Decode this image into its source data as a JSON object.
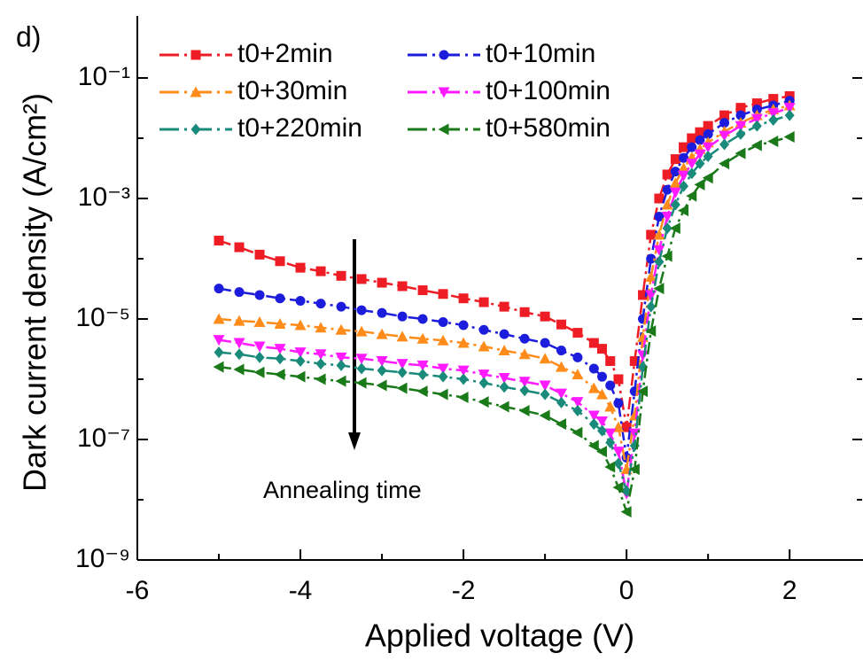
{
  "chart_data": {
    "type": "line",
    "panel_label": "d)",
    "xlabel": "Applied voltage (V)",
    "ylabel": "Dark current density (A/cm²)",
    "annotation": "Annealing time",
    "yscale": "log",
    "legend": "upper left",
    "legend_columns": 2,
    "xlim": [
      -6,
      2.9
    ],
    "ylim": [
      1e-09,
      1
    ],
    "xticks": [
      -6,
      -4,
      -2,
      0,
      2
    ],
    "xticks_minor": [
      -5,
      -3,
      -1,
      1
    ],
    "yticks": [
      {
        "value": 1e-09,
        "label": "10⁻⁹"
      },
      {
        "value": 1e-07,
        "label": "10⁻⁷"
      },
      {
        "value": 1e-05,
        "label": "10⁻⁵"
      },
      {
        "value": 0.001,
        "label": "10⁻³"
      },
      {
        "value": 0.1,
        "label": "10⁻¹"
      }
    ],
    "yticks_minor": [
      1e-08,
      1e-06,
      0.0001,
      0.01
    ],
    "x": [
      -5,
      -4.75,
      -4.5,
      -4.25,
      -4,
      -3.75,
      -3.5,
      -3.25,
      -3,
      -2.75,
      -2.5,
      -2.25,
      -2,
      -1.75,
      -1.5,
      -1.25,
      -1,
      -0.8,
      -0.6,
      -0.4,
      -0.3,
      -0.2,
      -0.1,
      0,
      0.1,
      0.2,
      0.3,
      0.4,
      0.5,
      0.6,
      0.7,
      0.8,
      0.9,
      1,
      1.2,
      1.4,
      1.6,
      1.8,
      2
    ],
    "series": [
      {
        "name": "t0+2min",
        "color": "#ee1c24",
        "marker": "square",
        "values": [
          0.0002,
          0.000155,
          0.000117,
          9.1e-05,
          7.1e-05,
          6.2e-05,
          5.2e-05,
          4.6e-05,
          4e-05,
          3.5e-05,
          3e-05,
          2.6e-05,
          2.2e-05,
          1.9e-05,
          1.6e-05,
          1.3e-05,
          1.1e-05,
          8.1e-06,
          5.9e-06,
          4e-06,
          3.2e-06,
          2e-06,
          1e-06,
          1.6e-07,
          2e-06,
          2.5e-05,
          0.00025,
          0.001,
          0.0025,
          0.0045,
          0.0071,
          0.01,
          0.0126,
          0.016,
          0.024,
          0.032,
          0.038,
          0.045,
          0.05
        ]
      },
      {
        "name": "t0+10min",
        "color": "#1c1cdc",
        "marker": "circle",
        "values": [
          3.2e-05,
          2.8e-05,
          2.5e-05,
          2.2e-05,
          2e-05,
          1.8e-05,
          1.6e-05,
          1.4e-05,
          1.26e-05,
          1.1e-05,
          1e-05,
          8.9e-06,
          7.9e-06,
          6.6e-06,
          5.6e-06,
          4.7e-06,
          4e-06,
          3e-06,
          2.3e-06,
          1.5e-06,
          1.1e-06,
          7.9e-07,
          4e-07,
          5e-08,
          6.3e-07,
          1e-05,
          0.0001,
          0.0005,
          0.0014,
          0.0028,
          0.0047,
          0.0071,
          0.0093,
          0.0117,
          0.018,
          0.024,
          0.03,
          0.035,
          0.042
        ]
      },
      {
        "name": "t0+30min",
        "color": "#ff8c1a",
        "marker": "triangle-up",
        "values": [
          1e-05,
          9.3e-06,
          8.9e-06,
          8.3e-06,
          7.9e-06,
          7.2e-06,
          6.6e-06,
          6.2e-06,
          5.6e-06,
          5.1e-06,
          4.7e-06,
          4.4e-06,
          4e-06,
          3.5e-06,
          3e-06,
          2.6e-06,
          2.2e-06,
          1.6e-06,
          1.2e-06,
          7.1e-07,
          5.6e-07,
          3.5e-07,
          1.6e-07,
          3.2e-08,
          2.5e-07,
          5e-06,
          5e-05,
          0.00025,
          0.00079,
          0.0018,
          0.0032,
          0.0048,
          0.0066,
          0.0085,
          0.013,
          0.018,
          0.024,
          0.03,
          0.035
        ]
      },
      {
        "name": "t0+100min",
        "color": "#ff1aff",
        "marker": "triangle-down",
        "values": [
          4.5e-06,
          4e-06,
          3.5e-06,
          3.2e-06,
          2.8e-06,
          2.6e-06,
          2.3e-06,
          2.2e-06,
          2e-06,
          1.8e-06,
          1.7e-06,
          1.5e-06,
          1.4e-06,
          1.2e-06,
          1.05e-06,
          9.1e-07,
          7.9e-07,
          5.8e-07,
          4.2e-07,
          2.5e-07,
          2e-07,
          1.26e-07,
          6.3e-08,
          1.26e-08,
          1.26e-07,
          2.5e-06,
          2.5e-05,
          0.00014,
          0.0005,
          0.00126,
          0.0024,
          0.0038,
          0.0054,
          0.0071,
          0.011,
          0.016,
          0.021,
          0.026,
          0.032
        ]
      },
      {
        "name": "t0+220min",
        "color": "#1a8a7a",
        "marker": "diamond",
        "values": [
          2.8e-06,
          2.6e-06,
          2.3e-06,
          2.2e-06,
          2e-06,
          1.8e-06,
          1.7e-06,
          1.5e-06,
          1.4e-06,
          1.3e-06,
          1.2e-06,
          1.1e-06,
          1e-06,
          8.7e-07,
          7.4e-07,
          6.5e-07,
          5.6e-07,
          4.1e-07,
          3e-07,
          1.8e-07,
          1.4e-07,
          8.9e-08,
          4e-08,
          1.4e-08,
          7.9e-08,
          1.6e-06,
          1.6e-05,
          8.9e-05,
          0.00032,
          0.00079,
          0.0016,
          0.0026,
          0.0038,
          0.005,
          0.0079,
          0.0117,
          0.016,
          0.02,
          0.024
        ]
      },
      {
        "name": "t0+580min",
        "color": "#1a7a1a",
        "marker": "triangle-left",
        "values": [
          1.6e-06,
          1.45e-06,
          1.3e-06,
          1.2e-06,
          1.1e-06,
          1e-06,
          9.3e-07,
          8.7e-07,
          7.9e-07,
          7.1e-07,
          6.3e-07,
          5.6e-07,
          5e-07,
          4.2e-07,
          3.5e-07,
          3e-07,
          2.5e-07,
          1.8e-07,
          1.3e-07,
          7.9e-08,
          6.3e-08,
          3.5e-08,
          1.6e-08,
          6.3e-09,
          3.2e-08,
          6.3e-07,
          6.3e-06,
          3.2e-05,
          0.00011,
          0.00032,
          0.00063,
          0.0011,
          0.0017,
          0.0022,
          0.0038,
          0.0056,
          0.0076,
          0.0089,
          0.0105
        ]
      }
    ]
  }
}
